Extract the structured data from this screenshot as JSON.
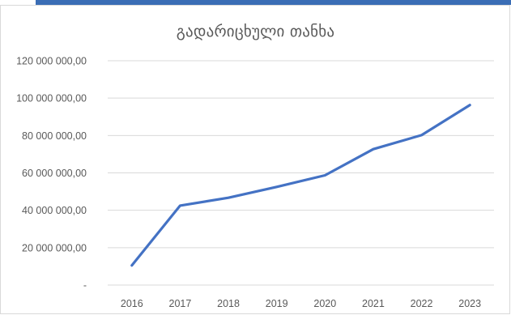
{
  "chart_data": {
    "type": "line",
    "title": "გადარიცხული თანხა",
    "xlabel": "",
    "ylabel": "",
    "categories": [
      "2016",
      "2017",
      "2018",
      "2019",
      "2020",
      "2021",
      "2022",
      "2023"
    ],
    "series": [
      {
        "values": [
          10500000,
          42500000,
          46700000,
          52500000,
          58700000,
          72700000,
          80200000,
          96300000
        ]
      }
    ],
    "ylim": [
      0,
      120000000
    ],
    "y_ticks": [
      0,
      20000000,
      40000000,
      60000000,
      80000000,
      100000000,
      120000000
    ],
    "y_tick_labels": [
      "-",
      "20 000 000,00",
      "40 000 000,00",
      "60 000 000,00",
      "80 000 000,00",
      "100 000 000,00",
      "120 000 000,00"
    ],
    "grid": true,
    "legend": "none",
    "colors": {
      "line": "#4472c4",
      "grid": "#d9d9d9",
      "text": "#595959",
      "top_bar": "#3a6db5"
    }
  }
}
